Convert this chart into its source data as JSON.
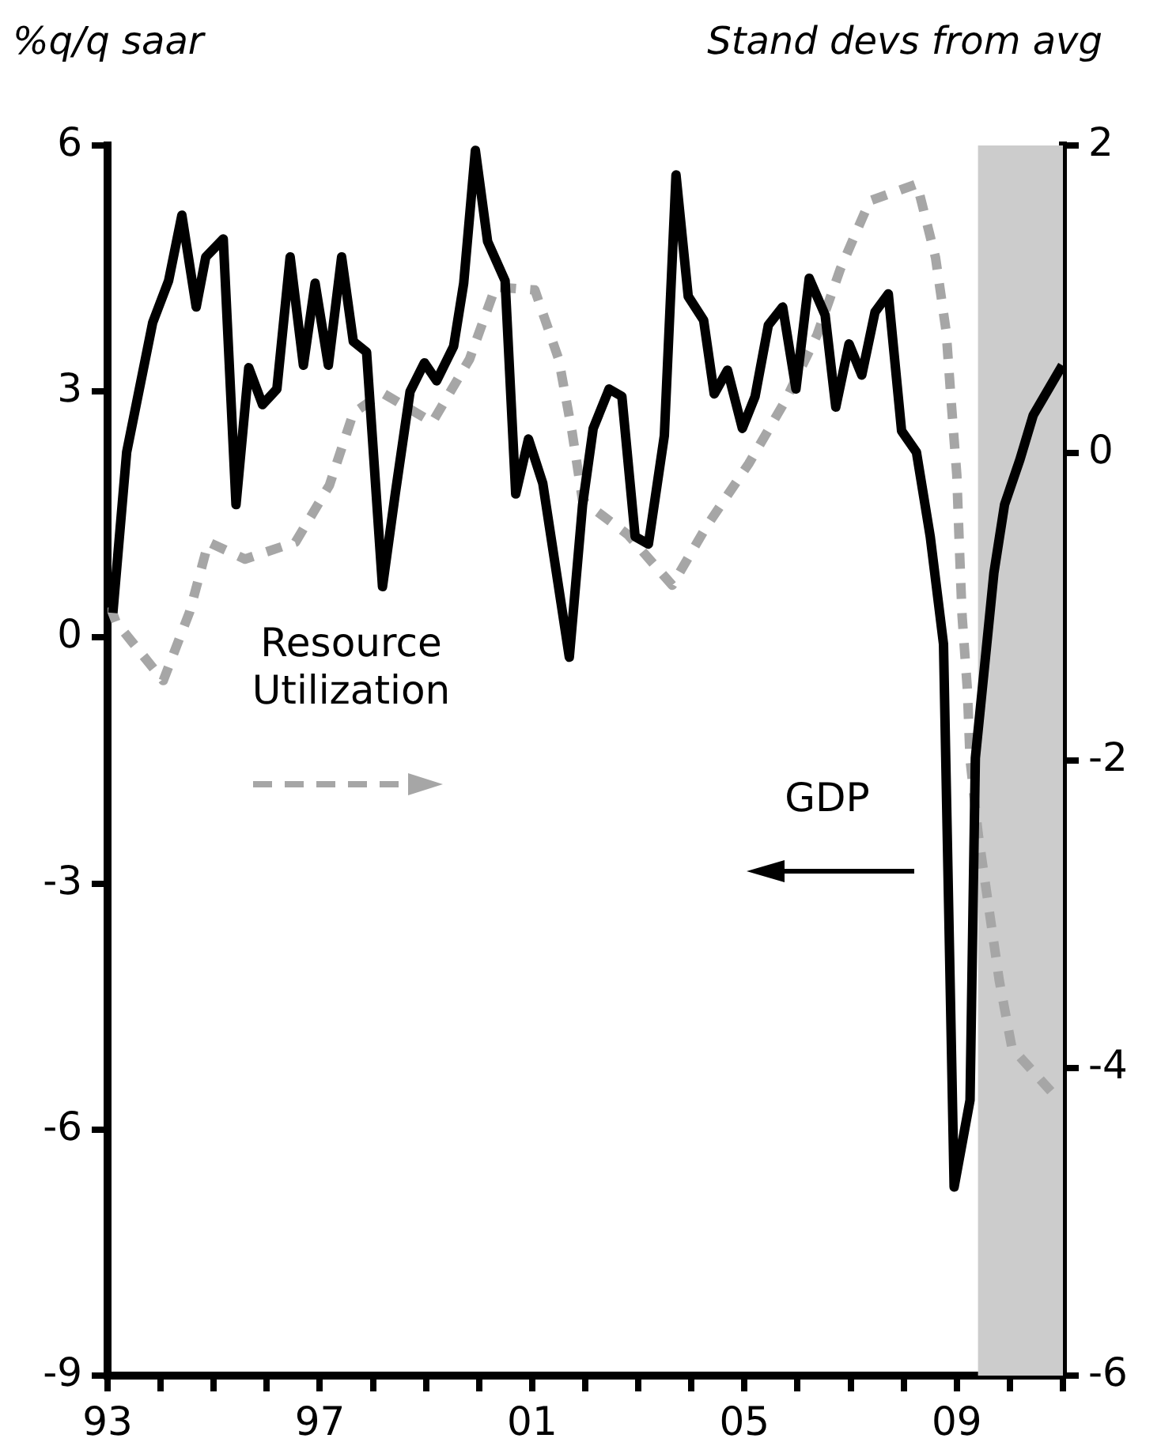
{
  "chart_data": {
    "type": "line",
    "ylabel": "%q/q saar",
    "y2label": "Stand devs from avg",
    "series": [
      {
        "name": "GDP",
        "color": "#000000",
        "line_style": "solid",
        "x": [
          1993.1,
          1993.36,
          1993.85,
          1994.15,
          1994.4,
          1994.67,
          1994.85,
          1995.18,
          1995.42,
          1995.66,
          1995.92,
          1996.19,
          1996.44,
          1996.69,
          1996.91,
          1997.16,
          1997.41,
          1997.63,
          1997.88,
          1998.18,
          1998.42,
          1998.7,
          1998.97,
          1999.2,
          1999.52,
          1999.71,
          1999.93,
          2000.16,
          2000.49,
          2000.69,
          2000.93,
          2001.2,
          2001.7,
          2001.95,
          2002.15,
          2002.45,
          2002.69,
          2002.94,
          2003.19,
          2003.49,
          2003.71,
          2003.94,
          2004.23,
          2004.43,
          2004.68,
          2004.96,
          2005.2,
          2005.45,
          2005.72,
          2005.97,
          2006.22,
          2006.52,
          2006.72,
          2006.97,
          2007.21,
          2007.46,
          2007.71,
          2007.96,
          2008.24,
          2008.5,
          2008.75,
          2008.95,
          2009.25,
          2009.35,
          2009.7,
          2009.9,
          2010.19,
          2010.44,
          2010.99
        ],
        "values": [
          0.3,
          2.26,
          3.84,
          4.35,
          5.15,
          4.03,
          4.64,
          4.86,
          1.62,
          3.29,
          2.84,
          3.03,
          4.64,
          3.32,
          4.32,
          3.32,
          4.64,
          3.61,
          3.48,
          0.62,
          1.75,
          3.0,
          3.35,
          3.13,
          3.55,
          4.32,
          5.94,
          4.83,
          4.35,
          1.75,
          2.42,
          1.88,
          -0.24,
          1.62,
          2.55,
          3.03,
          2.94,
          1.23,
          1.14,
          2.46,
          5.64,
          4.16,
          3.87,
          2.97,
          3.26,
          2.55,
          2.94,
          3.81,
          4.03,
          3.03,
          4.38,
          3.93,
          2.81,
          3.58,
          3.2,
          3.97,
          4.19,
          2.52,
          2.26,
          1.23,
          -0.08,
          -6.7,
          -5.64,
          -1.47,
          0.79,
          1.62,
          2.17,
          2.71,
          3.32
        ]
      },
      {
        "name": "Resource Utilization",
        "color": "#a6a6a6",
        "line_style": "dashed",
        "axis": "y2",
        "x": [
          1993.05,
          1993.16,
          1994.05,
          1994.55,
          1994.9,
          1995.59,
          1996.54,
          1997.18,
          1997.63,
          1998.18,
          1999.12,
          1999.82,
          2000.31,
          2001.05,
          2001.5,
          2001.75,
          2001.95,
          2002.8,
          2003.64,
          2004.28,
          2005.08,
          2005.77,
          2006.37,
          2006.81,
          2007.36,
          2008.25,
          2008.6,
          2008.8,
          2008.9,
          2009.0,
          2009.05,
          2009.1,
          2009.2,
          2009.25,
          2009.4,
          2009.6,
          2009.8,
          2010.04,
          2010.85
        ],
        "values": [
          -1.0,
          -1.1,
          -1.48,
          -1.03,
          -0.58,
          -0.69,
          -0.58,
          -0.21,
          0.26,
          0.39,
          0.2,
          0.61,
          1.08,
          1.06,
          0.61,
          0.14,
          -0.31,
          -0.53,
          -0.86,
          -0.48,
          -0.07,
          0.34,
          0.77,
          1.2,
          1.64,
          1.75,
          1.27,
          0.79,
          0.31,
          -0.14,
          -0.62,
          -1.06,
          -1.54,
          -1.99,
          -2.47,
          -2.95,
          -3.43,
          -3.87,
          -4.18
        ]
      }
    ],
    "xlim": [
      1993,
      2011
    ],
    "xticks": [
      {
        "value": 1993,
        "label": "93"
      },
      {
        "value": 1994,
        "label": null
      },
      {
        "value": 1995,
        "label": null
      },
      {
        "value": 1996,
        "label": null
      },
      {
        "value": 1997,
        "label": "97"
      },
      {
        "value": 1998,
        "label": null
      },
      {
        "value": 1999,
        "label": null
      },
      {
        "value": 2000,
        "label": null
      },
      {
        "value": 2001,
        "label": "01"
      },
      {
        "value": 2002,
        "label": null
      },
      {
        "value": 2003,
        "label": null
      },
      {
        "value": 2004,
        "label": null
      },
      {
        "value": 2005,
        "label": "05"
      },
      {
        "value": 2006,
        "label": null
      },
      {
        "value": 2007,
        "label": null
      },
      {
        "value": 2008,
        "label": null
      },
      {
        "value": 2009,
        "label": "09"
      },
      {
        "value": 2010,
        "label": null
      },
      {
        "value": 2011,
        "label": null
      }
    ],
    "ylim": [
      -9,
      6
    ],
    "yticks": [
      -9,
      -6,
      -3,
      0,
      3,
      6
    ],
    "y2lim": [
      -6,
      2
    ],
    "y2ticks": [
      -6,
      -4,
      -2,
      0,
      2
    ],
    "bands": [
      {
        "axis": "x",
        "from": 2009.4,
        "to": 2011,
        "color": "#cccccc"
      }
    ],
    "grid": false,
    "marker": "none"
  }
}
